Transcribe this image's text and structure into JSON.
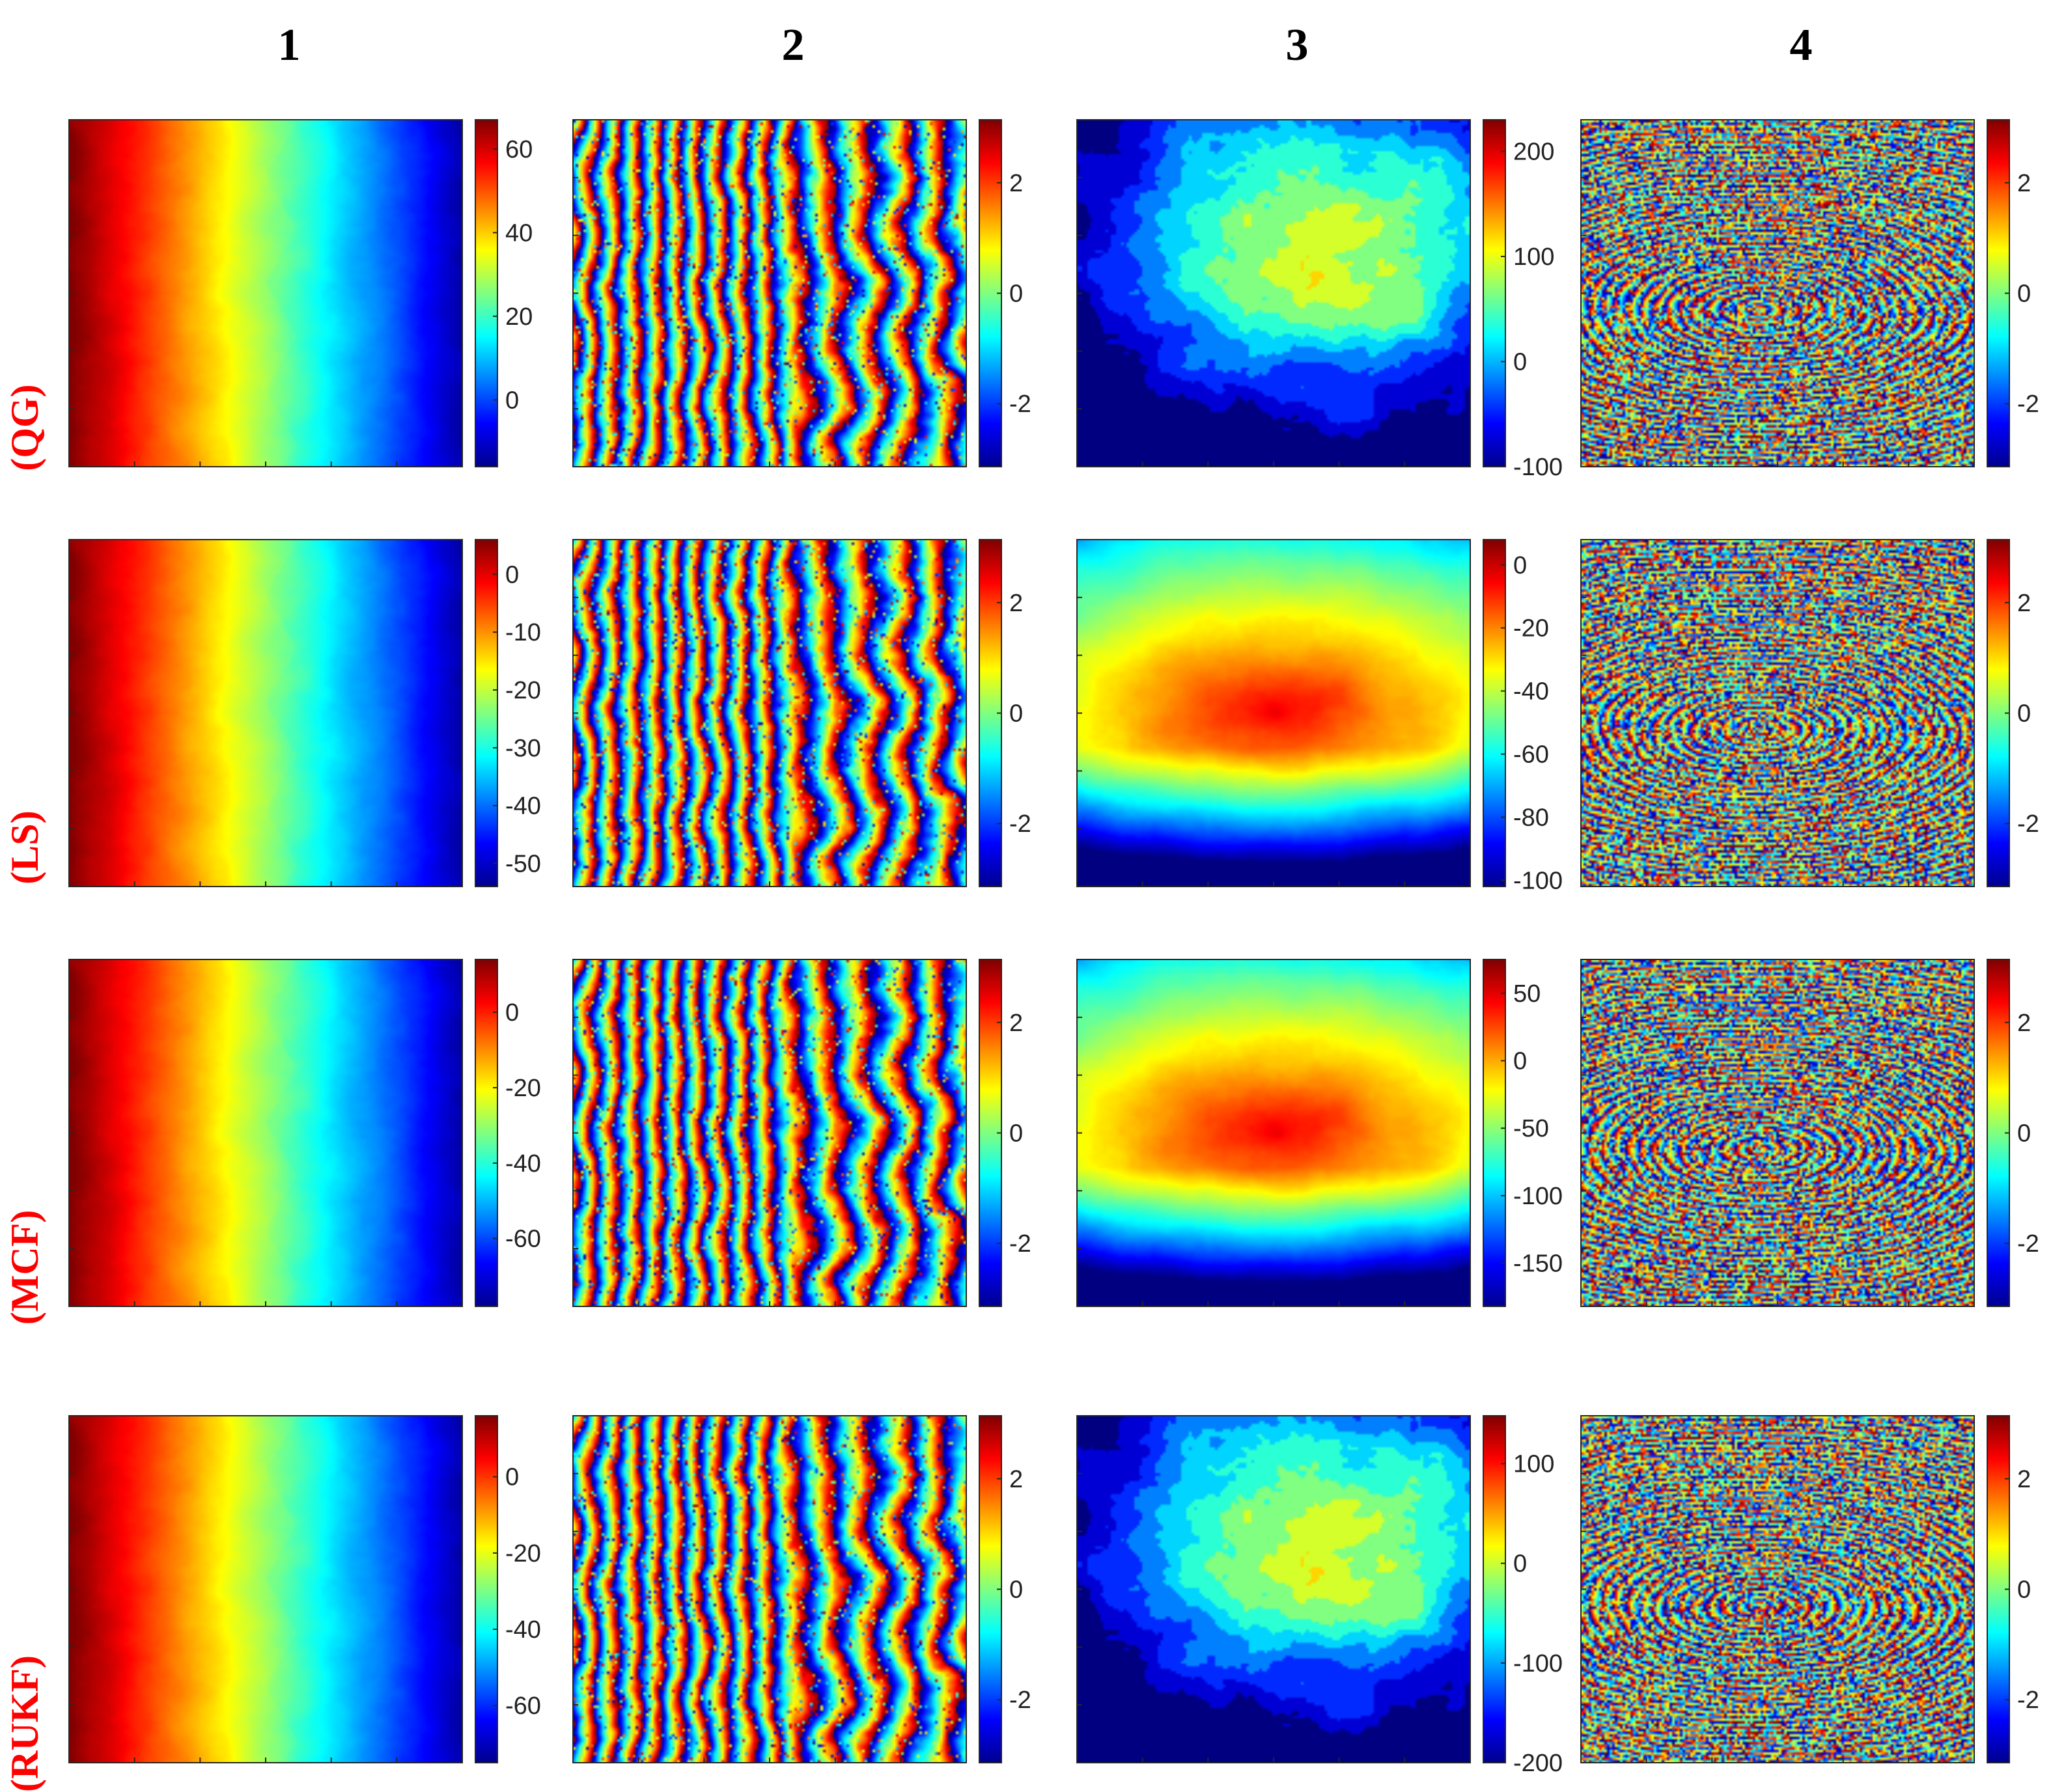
{
  "colors": {
    "row_label": "#ff0000",
    "colormap": [
      "#00008f",
      "#0000ff",
      "#00ffff",
      "#ffff00",
      "#ff0000",
      "#800000"
    ]
  },
  "columns": [
    "1",
    "2",
    "3",
    "4"
  ],
  "rows": [
    "(QG)",
    "(LS)",
    "(MCF)",
    "(RUKF)"
  ],
  "chart_data": {
    "type": "heatmap",
    "colormap": "jet",
    "panels": [
      {
        "row": "(QG)",
        "column": "1",
        "pattern": "ramp",
        "clim": [
          -16,
          67
        ],
        "ticks": [
          0,
          20,
          40,
          60
        ]
      },
      {
        "row": "(QG)",
        "column": "2",
        "pattern": "fringes",
        "clim": [
          -3.14,
          3.14
        ],
        "ticks": [
          -2,
          0,
          2
        ]
      },
      {
        "row": "(QG)",
        "column": "3",
        "pattern": "patchy",
        "clim": [
          -100,
          230
        ],
        "ticks": [
          -100,
          0,
          100,
          200
        ]
      },
      {
        "row": "(QG)",
        "column": "4",
        "pattern": "noise",
        "clim": [
          -3.14,
          3.14
        ],
        "ticks": [
          -2,
          0,
          2
        ]
      },
      {
        "row": "(LS)",
        "column": "1",
        "pattern": "ramp",
        "clim": [
          -54,
          6
        ],
        "ticks": [
          -50,
          -40,
          -30,
          -20,
          -10,
          0
        ]
      },
      {
        "row": "(LS)",
        "column": "2",
        "pattern": "fringes",
        "clim": [
          -3.14,
          3.14
        ],
        "ticks": [
          -2,
          0,
          2
        ]
      },
      {
        "row": "(LS)",
        "column": "3",
        "pattern": "blob",
        "clim": [
          -102,
          8
        ],
        "ticks": [
          -100,
          -80,
          -60,
          -40,
          -20,
          0
        ]
      },
      {
        "row": "(LS)",
        "column": "4",
        "pattern": "noise",
        "clim": [
          -3.14,
          3.14
        ],
        "ticks": [
          -2,
          0,
          2
        ]
      },
      {
        "row": "(MCF)",
        "column": "1",
        "pattern": "ramp",
        "clim": [
          -78,
          14
        ],
        "ticks": [
          -60,
          -40,
          -20,
          0
        ]
      },
      {
        "row": "(MCF)",
        "column": "2",
        "pattern": "fringes",
        "clim": [
          -3.14,
          3.14
        ],
        "ticks": [
          -2,
          0,
          2
        ]
      },
      {
        "row": "(MCF)",
        "column": "3",
        "pattern": "blob",
        "clim": [
          -182,
          75
        ],
        "ticks": [
          -150,
          -100,
          -50,
          0,
          50
        ]
      },
      {
        "row": "(MCF)",
        "column": "4",
        "pattern": "noise",
        "clim": [
          -3.14,
          3.14
        ],
        "ticks": [
          -2,
          0,
          2
        ]
      },
      {
        "row": "(RUKF)",
        "column": "1",
        "pattern": "ramp",
        "clim": [
          -75,
          16
        ],
        "ticks": [
          -60,
          -40,
          -20,
          0
        ]
      },
      {
        "row": "(RUKF)",
        "column": "2",
        "pattern": "fringes",
        "clim": [
          -3.14,
          3.14
        ],
        "ticks": [
          -2,
          0,
          2
        ]
      },
      {
        "row": "(RUKF)",
        "column": "3",
        "pattern": "patchy",
        "clim": [
          -200,
          148
        ],
        "ticks": [
          -200,
          -100,
          0,
          100
        ]
      },
      {
        "row": "(RUKF)",
        "column": "4",
        "pattern": "noise",
        "clim": [
          -3.14,
          3.14
        ],
        "ticks": [
          -2,
          0,
          2
        ]
      }
    ]
  }
}
